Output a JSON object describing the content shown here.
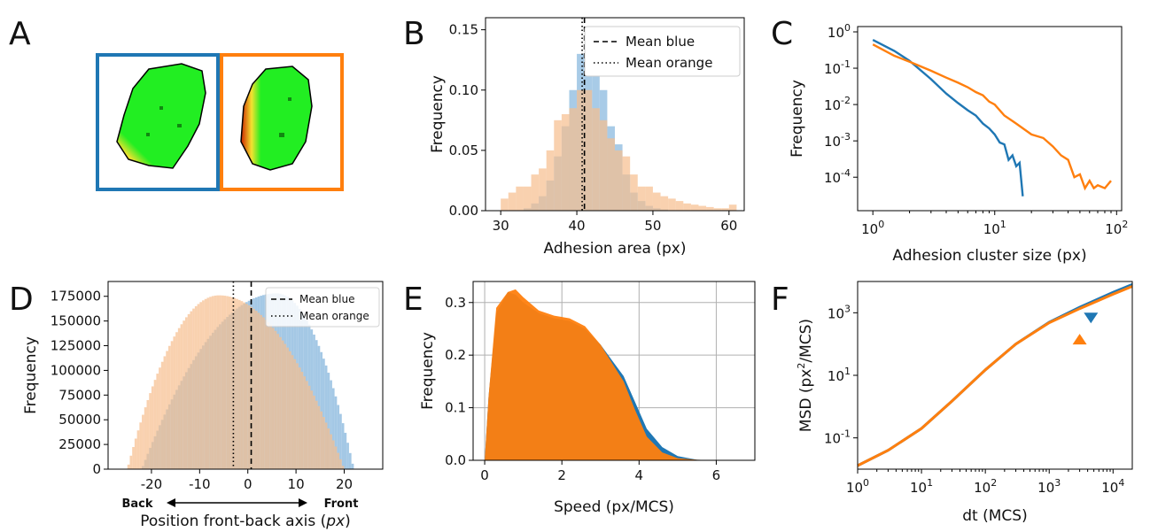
{
  "colors": {
    "blue": "#1f77b4",
    "orange": "#ff7f0e",
    "blue_fill": "#9fc5e4",
    "orange_fill": "#f7be8d",
    "cell_green": "#22ee22",
    "cell_red": "#cc2200",
    "cell_yellow": "#f4e230"
  },
  "chart_data": [
    {
      "panel": "A",
      "type": "image",
      "description_free": true,
      "frames": [
        "blue",
        "orange"
      ]
    },
    {
      "panel": "B",
      "type": "histogram",
      "xlabel": "Adhesion area (px)",
      "ylabel": "Frequency",
      "xlim": [
        28,
        62
      ],
      "ylim": [
        0,
        0.16
      ],
      "xticks": [
        "30",
        "40",
        "50",
        "60"
      ],
      "yticks": [
        "0.00",
        "0.05",
        "0.10",
        "0.15"
      ],
      "mean_blue": 41.0,
      "mean_orange": 40.7,
      "legend": [
        "Mean blue",
        "Mean orange"
      ],
      "legend_loc": "top-right",
      "series": [
        {
          "color": "blue",
          "bins": [
            30,
            31,
            32,
            33,
            34,
            35,
            36,
            37,
            38,
            39,
            40,
            41,
            42,
            43,
            44,
            45,
            46,
            47,
            48,
            49,
            50,
            51,
            52,
            53
          ],
          "values": [
            0,
            0,
            0,
            0.002,
            0.006,
            0.012,
            0.025,
            0.045,
            0.07,
            0.1,
            0.13,
            0.15,
            0.12,
            0.1,
            0.07,
            0.055,
            0.03,
            0.015,
            0.008,
            0.004,
            0.002,
            0.001,
            0,
            0
          ]
        },
        {
          "color": "orange",
          "bins": [
            30,
            31,
            32,
            33,
            34,
            35,
            36,
            37,
            38,
            39,
            40,
            41,
            42,
            43,
            44,
            45,
            46,
            47,
            48,
            49,
            50,
            51,
            52,
            53,
            54,
            55,
            56,
            57,
            58,
            59,
            60
          ],
          "values": [
            0.01,
            0.015,
            0.02,
            0.02,
            0.03,
            0.035,
            0.05,
            0.075,
            0.08,
            0.085,
            0.1,
            0.1,
            0.085,
            0.075,
            0.06,
            0.05,
            0.045,
            0.03,
            0.02,
            0.02,
            0.015,
            0.012,
            0.01,
            0.008,
            0.006,
            0.005,
            0.004,
            0.003,
            0.002,
            0.002,
            0.005
          ]
        }
      ]
    },
    {
      "panel": "C",
      "type": "line",
      "xlabel": "Adhesion cluster size (px)",
      "ylabel": "Frequency",
      "xscale": "log",
      "yscale": "log",
      "xlim": [
        0.75,
        110
      ],
      "ylim": [
        1.2e-05,
        1.4
      ],
      "xticks": [
        {
          "v": 1,
          "label": "10",
          "exp": "0"
        },
        {
          "v": 10,
          "label": "10",
          "exp": "1"
        },
        {
          "v": 100,
          "label": "10",
          "exp": "2"
        }
      ],
      "yticks": [
        {
          "v": 1,
          "label": "10",
          "exp": "0"
        },
        {
          "v": 0.1,
          "label": "10",
          "exp": "-1"
        },
        {
          "v": 0.01,
          "label": "10",
          "exp": "-2"
        },
        {
          "v": 0.001,
          "label": "10",
          "exp": "-3"
        },
        {
          "v": 0.0001,
          "label": "10",
          "exp": "-4"
        }
      ],
      "series": [
        {
          "color": "blue",
          "x": [
            1,
            1.5,
            2,
            3,
            4,
            5,
            6,
            7,
            8,
            9,
            10,
            11,
            12,
            13,
            14,
            15,
            16,
            17
          ],
          "y": [
            0.6,
            0.3,
            0.16,
            0.05,
            0.02,
            0.011,
            0.007,
            0.005,
            0.003,
            0.0022,
            0.0015,
            0.0009,
            0.0008,
            0.0003,
            0.0004,
            0.0002,
            0.00025,
            3e-05
          ]
        },
        {
          "color": "orange",
          "x": [
            1,
            1.5,
            2,
            3,
            4,
            5,
            6,
            7,
            8,
            9,
            10,
            12,
            15,
            20,
            25,
            30,
            35,
            40,
            45,
            50,
            55,
            60,
            65,
            70,
            80,
            90
          ],
          "y": [
            0.45,
            0.22,
            0.15,
            0.085,
            0.055,
            0.04,
            0.03,
            0.022,
            0.018,
            0.012,
            0.01,
            0.005,
            0.003,
            0.0015,
            0.0012,
            0.0007,
            0.0004,
            0.0003,
            0.0001,
            0.00012,
            5e-05,
            8e-05,
            5e-05,
            6e-05,
            5e-05,
            8e-05
          ]
        }
      ]
    },
    {
      "panel": "D",
      "type": "histogram",
      "xlabel": "Position front-back axis (",
      "xlabel_italic": "px",
      "xlabel_end": ")",
      "ylabel": "Frequency",
      "xlim": [
        -29,
        28
      ],
      "ylim": [
        0,
        190000
      ],
      "xticks": [
        "-20",
        "-10",
        "0",
        "10",
        "20"
      ],
      "yticks": [
        "0",
        "25000",
        "50000",
        "75000",
        "100000",
        "125000",
        "150000",
        "175000"
      ],
      "mean_blue": 0.7,
      "mean_orange": -3.0,
      "legend": [
        "Mean blue",
        "Mean orange"
      ],
      "legend_loc": "top-right",
      "arrow_left": "Back",
      "arrow_right": "Front",
      "series": [
        {
          "color": "blue",
          "center": 6,
          "peak": 178000,
          "range": [
            -22,
            22
          ]
        },
        {
          "color": "orange",
          "center": -6,
          "peak": 176000,
          "range": [
            -25,
            20
          ]
        }
      ]
    },
    {
      "panel": "E",
      "type": "histogram",
      "xlabel": "Speed (px/MCS)",
      "ylabel": "Frequency",
      "xlim": [
        -0.3,
        7
      ],
      "ylim": [
        0,
        0.34
      ],
      "xticks": [
        "0",
        "2",
        "4",
        "6"
      ],
      "yticks": [
        "0.0",
        "0.1",
        "0.2",
        "0.3"
      ],
      "grid": true,
      "series": [
        {
          "color": "blue",
          "x": [
            0,
            0.1,
            0.3,
            0.6,
            0.8,
            1.0,
            1.4,
            1.8,
            2.2,
            2.6,
            3.0,
            3.3,
            3.6,
            3.9,
            4.2,
            4.6,
            5.0,
            5.5,
            6.0
          ],
          "y": [
            0,
            0.12,
            0.28,
            0.32,
            0.315,
            0.3,
            0.28,
            0.27,
            0.265,
            0.25,
            0.22,
            0.19,
            0.16,
            0.11,
            0.06,
            0.025,
            0.008,
            0.001,
            0
          ]
        },
        {
          "color": "orange",
          "x": [
            0,
            0.1,
            0.3,
            0.6,
            0.8,
            1.0,
            1.4,
            1.8,
            2.2,
            2.6,
            3.0,
            3.3,
            3.6,
            3.9,
            4.2,
            4.6,
            5.0,
            5.5,
            6.0
          ],
          "y": [
            0,
            0.12,
            0.29,
            0.32,
            0.325,
            0.31,
            0.285,
            0.275,
            0.27,
            0.255,
            0.22,
            0.185,
            0.15,
            0.095,
            0.045,
            0.015,
            0.004,
            0.001,
            0
          ]
        }
      ]
    },
    {
      "panel": "F",
      "type": "line",
      "xlabel": "dt (MCS)",
      "ylabel": "MSD (px",
      "ylabel_sup": "2",
      "ylabel_end": "/MCS)",
      "xscale": "log",
      "yscale": "log",
      "xlim": [
        1,
        20000
      ],
      "ylim": [
        0.01,
        10000
      ],
      "xticks": [
        {
          "v": 1,
          "label": "10",
          "exp": "0"
        },
        {
          "v": 10,
          "label": "10",
          "exp": "1"
        },
        {
          "v": 100,
          "label": "10",
          "exp": "2"
        },
        {
          "v": 1000,
          "label": "10",
          "exp": "3"
        },
        {
          "v": 10000,
          "label": "10",
          "exp": "4"
        }
      ],
      "yticks": [
        {
          "v": 0.1,
          "label": "10",
          "exp": "-1"
        },
        {
          "v": 10,
          "label": "10",
          "exp": "1"
        },
        {
          "v": 1000,
          "label": "10",
          "exp": "3"
        }
      ],
      "series": [
        {
          "color": "blue",
          "x": [
            1,
            3,
            10,
            30,
            100,
            300,
            1000,
            3000,
            10000,
            20000
          ],
          "y": [
            0.013,
            0.04,
            0.2,
            1.5,
            15,
            100,
            500,
            1500,
            4500,
            8000
          ]
        },
        {
          "color": "orange",
          "x": [
            1,
            3,
            10,
            30,
            100,
            300,
            1000,
            3000,
            10000,
            20000
          ],
          "y": [
            0.013,
            0.04,
            0.2,
            1.5,
            15,
            100,
            480,
            1350,
            3900,
            7000
          ]
        }
      ],
      "markers": [
        {
          "color": "blue",
          "shape": "triangle-down",
          "x": 4500,
          "y": 700
        },
        {
          "color": "orange",
          "shape": "triangle-up",
          "x": 3000,
          "y": 140
        }
      ]
    }
  ]
}
